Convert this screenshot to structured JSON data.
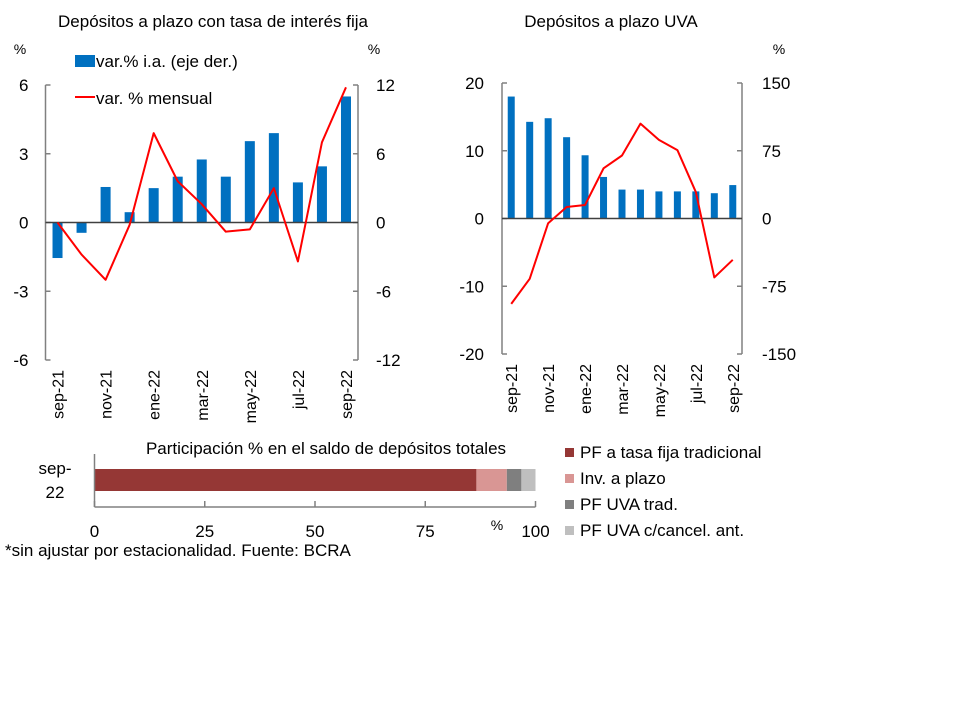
{
  "chart_data": [
    {
      "type": "bar",
      "title": "Depósitos a plazo con tasa de interés fija",
      "left_unit": "%",
      "right_unit": "%",
      "categories": [
        "sep-21",
        "oct-21",
        "nov-21",
        "dic-21",
        "ene-22",
        "feb-22",
        "mar-22",
        "abr-22",
        "may-22",
        "jun-22",
        "jul-22",
        "ago-22",
        "sep-22"
      ],
      "x_tick_labels": [
        "sep-21",
        "nov-21",
        "ene-22",
        "mar-22",
        "may-22",
        "jul-22",
        "sep-22"
      ],
      "left_axis": {
        "ylim": [
          -6,
          6
        ],
        "ticks": [
          "-6",
          "-3",
          "0",
          "3",
          "6"
        ],
        "tick_values": [
          -6,
          -3,
          0,
          3,
          6
        ]
      },
      "right_axis": {
        "ylim": [
          -12,
          12
        ],
        "ticks": [
          "-12",
          "-6",
          "0",
          "6",
          "12"
        ],
        "tick_values": [
          -12,
          -6,
          0,
          6,
          12
        ]
      },
      "series": [
        {
          "name": "var.% i.a. (eje der.)",
          "type": "bar",
          "axis": "right",
          "color": "#0070C0",
          "values": [
            -3.1,
            -0.9,
            3.1,
            0.9,
            3.0,
            4.0,
            5.5,
            4.0,
            7.1,
            7.8,
            3.5,
            4.9,
            11.0
          ]
        },
        {
          "name": "var. % mensual",
          "type": "line",
          "axis": "left",
          "color": "#FF0000",
          "values": [
            0.0,
            -1.4,
            -2.5,
            -0.1,
            3.9,
            1.8,
            0.8,
            -0.4,
            -0.3,
            1.5,
            -1.7,
            3.5,
            5.9
          ]
        }
      ],
      "legend": "top-left"
    },
    {
      "type": "bar",
      "title": "Depósitos a plazo UVA",
      "right_unit": "%",
      "categories": [
        "sep-21",
        "oct-21",
        "nov-21",
        "dic-21",
        "ene-22",
        "feb-22",
        "mar-22",
        "abr-22",
        "may-22",
        "jun-22",
        "jul-22",
        "ago-22",
        "sep-22"
      ],
      "x_tick_labels": [
        "sep-21",
        "nov-21",
        "ene-22",
        "mar-22",
        "may-22",
        "jul-22",
        "sep-22"
      ],
      "left_axis": {
        "ylim": [
          -20,
          20
        ],
        "ticks": [
          "-20",
          "-10",
          "0",
          "10",
          "20"
        ],
        "tick_values": [
          -20,
          -10,
          0,
          10,
          20
        ]
      },
      "right_axis": {
        "ylim": [
          -150,
          150
        ],
        "ticks": [
          "-150",
          "-75",
          "0",
          "75",
          "150"
        ],
        "tick_values": [
          -150,
          -75,
          0,
          75,
          150
        ]
      },
      "series": [
        {
          "name": "var.% i.a. (eje der.)",
          "type": "bar",
          "axis": "right",
          "color": "#0070C0",
          "values": [
            135,
            107,
            111,
            90,
            70,
            46,
            32,
            32,
            30,
            30,
            30,
            28,
            37
          ]
        },
        {
          "name": "var. % mensual",
          "type": "line",
          "axis": "left",
          "color": "#FF0000",
          "values": [
            -12.6,
            -8.9,
            -0.7,
            1.7,
            2.0,
            7.4,
            9.3,
            14.0,
            11.6,
            10.1,
            3.9,
            -8.7,
            -6.1
          ]
        }
      ]
    },
    {
      "type": "bar",
      "orientation": "horizontal",
      "stacked": true,
      "title": "Participación % en el saldo de depósitos totales",
      "category_label_lines": [
        "sep-",
        "22"
      ],
      "categories": [
        "sep-22"
      ],
      "xlim": [
        0,
        100
      ],
      "x_ticks": [
        "0",
        "25",
        "50",
        "75",
        "100"
      ],
      "x_tick_values": [
        0,
        25,
        50,
        75,
        100
      ],
      "x_unit": "%",
      "series": [
        {
          "name": "PF a tasa fija tradicional",
          "color": "#953735",
          "values": [
            86.6
          ]
        },
        {
          "name": "Inv. a plazo",
          "color": "#D99694",
          "values": [
            6.9
          ]
        },
        {
          "name": "PF UVA trad.",
          "color": "#7F7F7F",
          "values": [
            3.3
          ]
        },
        {
          "name": "PF UVA c/cancel. ant.",
          "color": "#BFBFBF",
          "values": [
            3.2
          ]
        }
      ],
      "legend": "right"
    }
  ],
  "footnote": "*sin ajustar por estacionalidad. Fuente: BCRA",
  "colors": {
    "axis": "#808080",
    "zero_line": "#404040"
  }
}
